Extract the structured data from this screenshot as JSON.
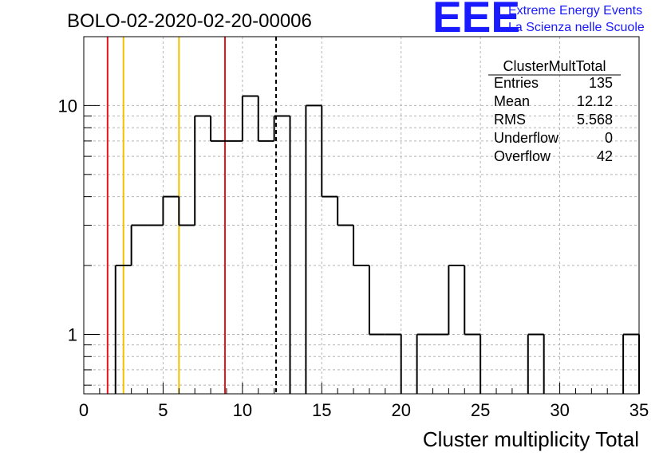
{
  "chart_data": {
    "type": "bar",
    "title": "BOLO-02-2020-02-20-00006",
    "xlabel": "Cluster multiplicity Total",
    "ylabel": "",
    "xlim": [
      0,
      35
    ],
    "ylim": [
      0.55,
      20
    ],
    "log_y": true,
    "grid": true,
    "histogram_style": "step",
    "x_ticks": [
      "0",
      "5",
      "10",
      "15",
      "20",
      "25",
      "30",
      "35"
    ],
    "y_ticks": [
      "1",
      "10"
    ],
    "bins": [
      {
        "x0": 0,
        "x1": 1,
        "value": 0
      },
      {
        "x0": 1,
        "x1": 2,
        "value": 0
      },
      {
        "x0": 2,
        "x1": 3,
        "value": 2
      },
      {
        "x0": 3,
        "x1": 4,
        "value": 3
      },
      {
        "x0": 4,
        "x1": 5,
        "value": 3
      },
      {
        "x0": 5,
        "x1": 6,
        "value": 4
      },
      {
        "x0": 6,
        "x1": 7,
        "value": 3
      },
      {
        "x0": 7,
        "x1": 8,
        "value": 9
      },
      {
        "x0": 8,
        "x1": 9,
        "value": 7
      },
      {
        "x0": 9,
        "x1": 10,
        "value": 7
      },
      {
        "x0": 10,
        "x1": 11,
        "value": 11
      },
      {
        "x0": 11,
        "x1": 12,
        "value": 7
      },
      {
        "x0": 12,
        "x1": 13,
        "value": 9
      },
      {
        "x0": 13,
        "x1": 14,
        "value": 0
      },
      {
        "x0": 14,
        "x1": 15,
        "value": 10
      },
      {
        "x0": 15,
        "x1": 16,
        "value": 4
      },
      {
        "x0": 16,
        "x1": 17,
        "value": 3
      },
      {
        "x0": 17,
        "x1": 18,
        "value": 2
      },
      {
        "x0": 18,
        "x1": 19,
        "value": 1
      },
      {
        "x0": 19,
        "x1": 20,
        "value": 1
      },
      {
        "x0": 20,
        "x1": 21,
        "value": 0
      },
      {
        "x0": 21,
        "x1": 22,
        "value": 1
      },
      {
        "x0": 22,
        "x1": 23,
        "value": 1
      },
      {
        "x0": 23,
        "x1": 24,
        "value": 2
      },
      {
        "x0": 24,
        "x1": 25,
        "value": 1
      },
      {
        "x0": 25,
        "x1": 26,
        "value": 0
      },
      {
        "x0": 26,
        "x1": 27,
        "value": 0
      },
      {
        "x0": 27,
        "x1": 28,
        "value": 0
      },
      {
        "x0": 28,
        "x1": 29,
        "value": 1
      },
      {
        "x0": 29,
        "x1": 30,
        "value": 0
      },
      {
        "x0": 30,
        "x1": 31,
        "value": 0
      },
      {
        "x0": 31,
        "x1": 32,
        "value": 0
      },
      {
        "x0": 32,
        "x1": 33,
        "value": 0
      },
      {
        "x0": 33,
        "x1": 34,
        "value": 0
      },
      {
        "x0": 34,
        "x1": 35,
        "value": 1
      }
    ],
    "reference_lines": [
      {
        "x": 1.5,
        "color": "#e8141a",
        "style": "solid"
      },
      {
        "x": 2.5,
        "color": "#f2c200",
        "style": "solid"
      },
      {
        "x": 6.0,
        "color": "#f2c200",
        "style": "solid"
      },
      {
        "x": 8.9,
        "color": "#e8141a",
        "style": "solid"
      },
      {
        "x": 12.12,
        "color": "#000000",
        "style": "dashed"
      }
    ],
    "stats_box": {
      "name": "ClusterMultTotal",
      "rows": [
        {
          "label": "Entries",
          "value": "135"
        },
        {
          "label": "Mean",
          "value": "12.12"
        },
        {
          "label": "RMS",
          "value": "5.568"
        },
        {
          "label": "Underflow",
          "value": "0"
        },
        {
          "label": "Overflow",
          "value": "42"
        }
      ]
    }
  },
  "logo": {
    "mark": "EEE",
    "line1": "Extreme Energy Events",
    "line2": "La Scienza nelle Scuole",
    "color": "#1a1aff"
  }
}
